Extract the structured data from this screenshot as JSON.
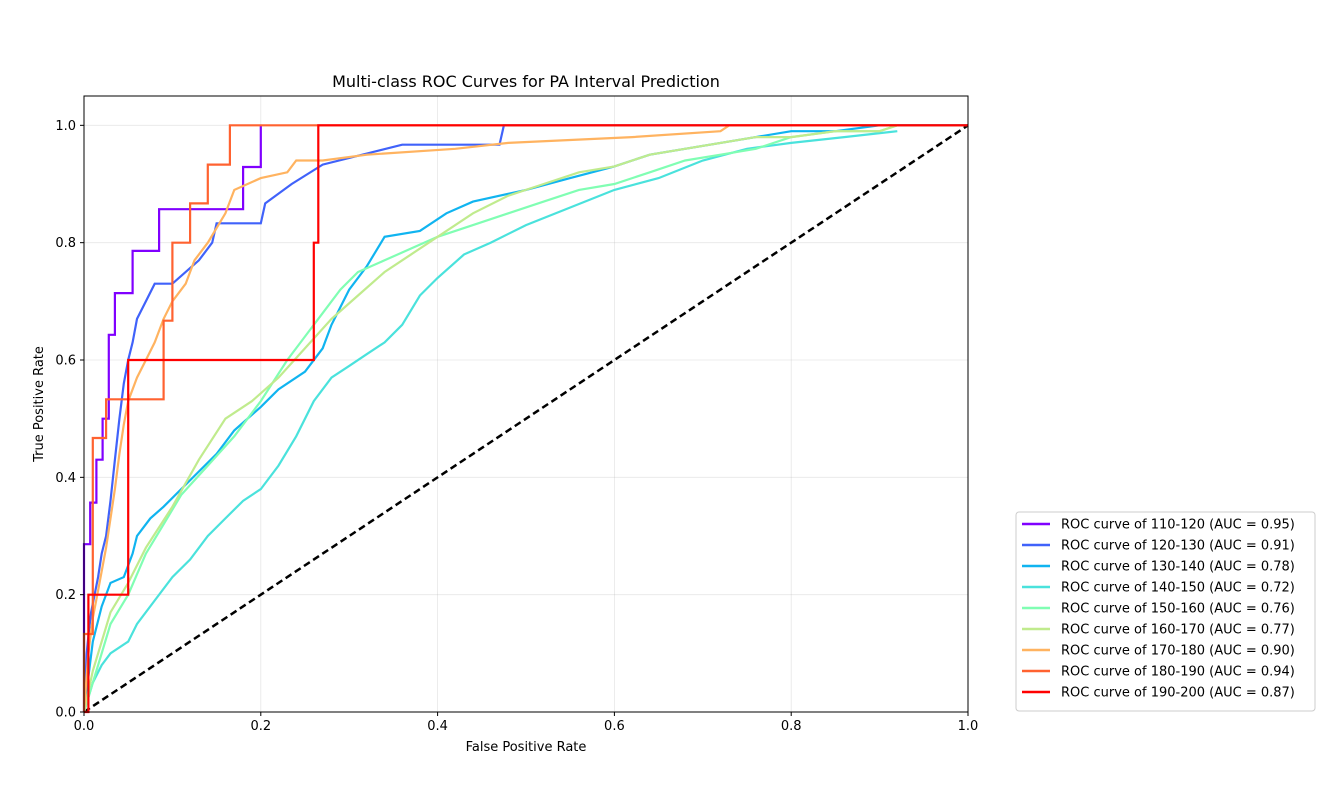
{
  "chart_data": {
    "type": "line",
    "title": "Multi-class ROC Curves for PA Interval Prediction",
    "xlabel": "False Positive Rate",
    "ylabel": "True Positive Rate",
    "xlim": [
      0.0,
      1.0
    ],
    "ylim": [
      0.0,
      1.05
    ],
    "xticks": [
      "0.0",
      "0.2",
      "0.4",
      "0.6",
      "0.8",
      "1.0"
    ],
    "yticks": [
      "0.0",
      "0.2",
      "0.4",
      "0.6",
      "0.8",
      "1.0"
    ],
    "grid": true,
    "legend_position": "lower-right-outside",
    "reference_line": {
      "x": [
        0,
        1
      ],
      "y": [
        0,
        1
      ],
      "color": "#000000",
      "style": "dashed"
    },
    "series": [
      {
        "name": "ROC curve of 110-120 (AUC = 0.95)",
        "color": "#8000ff",
        "x": [
          0,
          0,
          0.007,
          0.007,
          0.014,
          0.014,
          0.021,
          0.021,
          0.028,
          0.028,
          0.035,
          0.035,
          0.055,
          0.055,
          0.085,
          0.085,
          0.105,
          0.105,
          0.18,
          0.18,
          0.2,
          0.2
        ],
        "y": [
          0,
          0.286,
          0.286,
          0.357,
          0.357,
          0.43,
          0.43,
          0.5,
          0.5,
          0.643,
          0.643,
          0.714,
          0.714,
          0.786,
          0.786,
          0.857,
          0.857,
          0.857,
          0.857,
          0.929,
          0.929,
          1.0
        ]
      },
      {
        "name": "ROC curve of 120-130 (AUC = 0.91)",
        "color": "#4062fa",
        "x": [
          0,
          0.003,
          0.005,
          0.008,
          0.012,
          0.016,
          0.02,
          0.025,
          0.03,
          0.035,
          0.04,
          0.045,
          0.05,
          0.055,
          0.06,
          0.07,
          0.08,
          0.1,
          0.13,
          0.145,
          0.15,
          0.2,
          0.205,
          0.235,
          0.27,
          0.36,
          0.47,
          0.475,
          1.0
        ],
        "y": [
          0,
          0.1,
          0.13,
          0.17,
          0.2,
          0.23,
          0.27,
          0.3,
          0.36,
          0.43,
          0.5,
          0.56,
          0.6,
          0.63,
          0.67,
          0.7,
          0.73,
          0.73,
          0.77,
          0.8,
          0.833,
          0.833,
          0.867,
          0.9,
          0.933,
          0.967,
          0.967,
          1.0,
          1.0
        ]
      },
      {
        "name": "ROC curve of 130-140 (AUC = 0.78)",
        "color": "#10b4f0",
        "x": [
          0,
          0.01,
          0.02,
          0.03,
          0.045,
          0.055,
          0.06,
          0.075,
          0.09,
          0.11,
          0.13,
          0.15,
          0.17,
          0.2,
          0.22,
          0.25,
          0.27,
          0.28,
          0.3,
          0.32,
          0.34,
          0.38,
          0.41,
          0.44,
          0.5,
          0.55,
          0.6,
          0.64,
          0.68,
          0.72,
          0.76,
          0.8,
          0.85,
          0.9,
          0.95,
          1.0
        ],
        "y": [
          0,
          0.12,
          0.18,
          0.22,
          0.23,
          0.27,
          0.3,
          0.33,
          0.35,
          0.38,
          0.41,
          0.44,
          0.48,
          0.52,
          0.55,
          0.58,
          0.62,
          0.66,
          0.72,
          0.76,
          0.81,
          0.82,
          0.85,
          0.87,
          0.89,
          0.91,
          0.93,
          0.95,
          0.96,
          0.97,
          0.98,
          0.99,
          0.99,
          1.0,
          1.0,
          1.0
        ]
      },
      {
        "name": "ROC curve of 140-150 (AUC = 0.72)",
        "color": "#4ae2dc",
        "x": [
          0,
          0.01,
          0.02,
          0.03,
          0.05,
          0.06,
          0.08,
          0.1,
          0.12,
          0.14,
          0.16,
          0.18,
          0.2,
          0.22,
          0.24,
          0.26,
          0.28,
          0.3,
          0.32,
          0.34,
          0.36,
          0.38,
          0.4,
          0.43,
          0.46,
          0.5,
          0.55,
          0.6,
          0.65,
          0.7,
          0.75,
          0.8,
          0.86,
          0.92
        ],
        "y": [
          0,
          0.05,
          0.08,
          0.1,
          0.12,
          0.15,
          0.19,
          0.23,
          0.26,
          0.3,
          0.33,
          0.36,
          0.38,
          0.42,
          0.47,
          0.53,
          0.57,
          0.59,
          0.61,
          0.63,
          0.66,
          0.71,
          0.74,
          0.78,
          0.8,
          0.83,
          0.86,
          0.89,
          0.91,
          0.94,
          0.96,
          0.97,
          0.98,
          0.99
        ]
      },
      {
        "name": "ROC curve of 150-160 (AUC = 0.76)",
        "color": "#80feb3",
        "x": [
          0,
          0.01,
          0.02,
          0.03,
          0.05,
          0.07,
          0.09,
          0.11,
          0.14,
          0.17,
          0.2,
          0.23,
          0.25,
          0.27,
          0.29,
          0.31,
          0.34,
          0.37,
          0.4,
          0.44,
          0.48,
          0.52,
          0.56,
          0.6,
          0.64,
          0.68,
          0.72,
          0.76,
          0.8,
          0.85,
          0.9,
          0.92
        ],
        "y": [
          0,
          0.05,
          0.1,
          0.15,
          0.2,
          0.27,
          0.32,
          0.37,
          0.42,
          0.47,
          0.53,
          0.6,
          0.64,
          0.68,
          0.72,
          0.75,
          0.77,
          0.79,
          0.81,
          0.83,
          0.85,
          0.87,
          0.89,
          0.9,
          0.92,
          0.94,
          0.95,
          0.96,
          0.98,
          0.99,
          0.99,
          1.0
        ]
      },
      {
        "name": "ROC curve of 160-170 (AUC = 0.77)",
        "color": "#c0eb8d",
        "x": [
          0,
          0.01,
          0.02,
          0.03,
          0.05,
          0.07,
          0.1,
          0.13,
          0.16,
          0.19,
          0.22,
          0.25,
          0.28,
          0.31,
          0.34,
          0.37,
          0.4,
          0.44,
          0.48,
          0.52,
          0.56,
          0.6,
          0.64,
          0.68,
          0.72,
          0.76,
          0.8,
          0.85,
          0.9,
          0.92
        ],
        "y": [
          0,
          0.07,
          0.12,
          0.17,
          0.22,
          0.28,
          0.35,
          0.43,
          0.5,
          0.53,
          0.57,
          0.62,
          0.67,
          0.71,
          0.75,
          0.78,
          0.81,
          0.85,
          0.88,
          0.9,
          0.92,
          0.93,
          0.95,
          0.96,
          0.97,
          0.98,
          0.98,
          0.99,
          0.99,
          1.0
        ]
      },
      {
        "name": "ROC curve of 170-180 (AUC = 0.90)",
        "color": "#ffb360",
        "x": [
          0,
          0.005,
          0.01,
          0.015,
          0.02,
          0.025,
          0.03,
          0.035,
          0.04,
          0.045,
          0.05,
          0.06,
          0.07,
          0.08,
          0.09,
          0.1,
          0.115,
          0.125,
          0.14,
          0.16,
          0.17,
          0.2,
          0.23,
          0.24,
          0.27,
          0.32,
          0.42,
          0.48,
          0.62,
          0.72,
          0.73,
          0.92
        ],
        "y": [
          0,
          0.1,
          0.16,
          0.2,
          0.24,
          0.28,
          0.33,
          0.38,
          0.44,
          0.49,
          0.53,
          0.57,
          0.6,
          0.63,
          0.67,
          0.7,
          0.73,
          0.77,
          0.8,
          0.85,
          0.89,
          0.91,
          0.92,
          0.94,
          0.94,
          0.95,
          0.96,
          0.97,
          0.98,
          0.99,
          1.0,
          1.0
        ]
      },
      {
        "name": "ROC curve of 180-190 (AUC = 0.94)",
        "color": "#ff6230",
        "x": [
          0,
          0,
          0.01,
          0.01,
          0.025,
          0.025,
          0.09,
          0.09,
          0.1,
          0.1,
          0.12,
          0.12,
          0.14,
          0.14,
          0.165,
          0.165,
          1.0
        ],
        "y": [
          0,
          0.133,
          0.133,
          0.467,
          0.467,
          0.533,
          0.533,
          0.667,
          0.667,
          0.8,
          0.8,
          0.867,
          0.867,
          0.933,
          0.933,
          1.0,
          1.0
        ]
      },
      {
        "name": "ROC curve of 190-200 (AUC = 0.87)",
        "color": "#ff0000",
        "x": [
          0,
          0.005,
          0.005,
          0.05,
          0.05,
          0.052,
          0.052,
          0.26,
          0.26,
          0.265,
          0.265,
          1.0
        ],
        "y": [
          0,
          0,
          0.2,
          0.2,
          0.6,
          0.6,
          0.6,
          0.6,
          0.8,
          0.8,
          1.0,
          1.0
        ]
      }
    ]
  }
}
